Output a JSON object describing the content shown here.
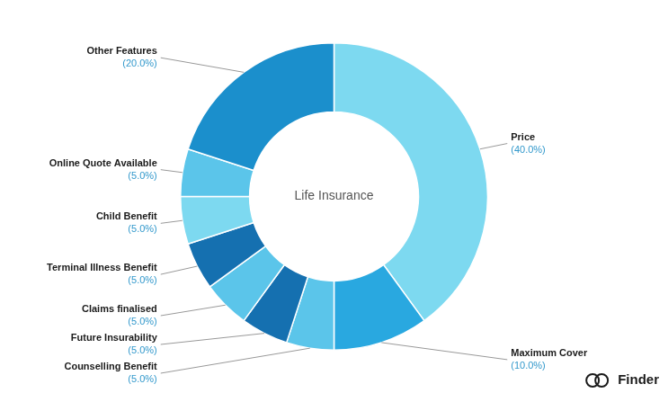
{
  "chart_data": {
    "type": "doughnut",
    "title": "Life Insurance",
    "categories": [
      "Price",
      "Maximum Cover",
      "Counselling Benefit",
      "Future Insurability",
      "Claims finalised",
      "Terminal Illness Benefit",
      "Child Benefit",
      "Online Quote Available",
      "Other Features"
    ],
    "values": [
      40.0,
      10.0,
      5.0,
      5.0,
      5.0,
      5.0,
      5.0,
      5.0,
      20.0
    ],
    "value_labels": [
      "(40.0%)",
      "(10.0%)",
      "(5.0%)",
      "(5.0%)",
      "(5.0%)",
      "(5.0%)",
      "(5.0%)",
      "(5.0%)",
      "(20.0%)"
    ],
    "colors": [
      "#7DD9F0",
      "#29A8E0",
      "#5BC5EA",
      "#1570B0",
      "#5BC5EA",
      "#1570B0",
      "#7DD9F0",
      "#5BC5EA",
      "#1B8FCC"
    ],
    "data_labels": true,
    "annotations": [
      "Finder"
    ]
  }
}
